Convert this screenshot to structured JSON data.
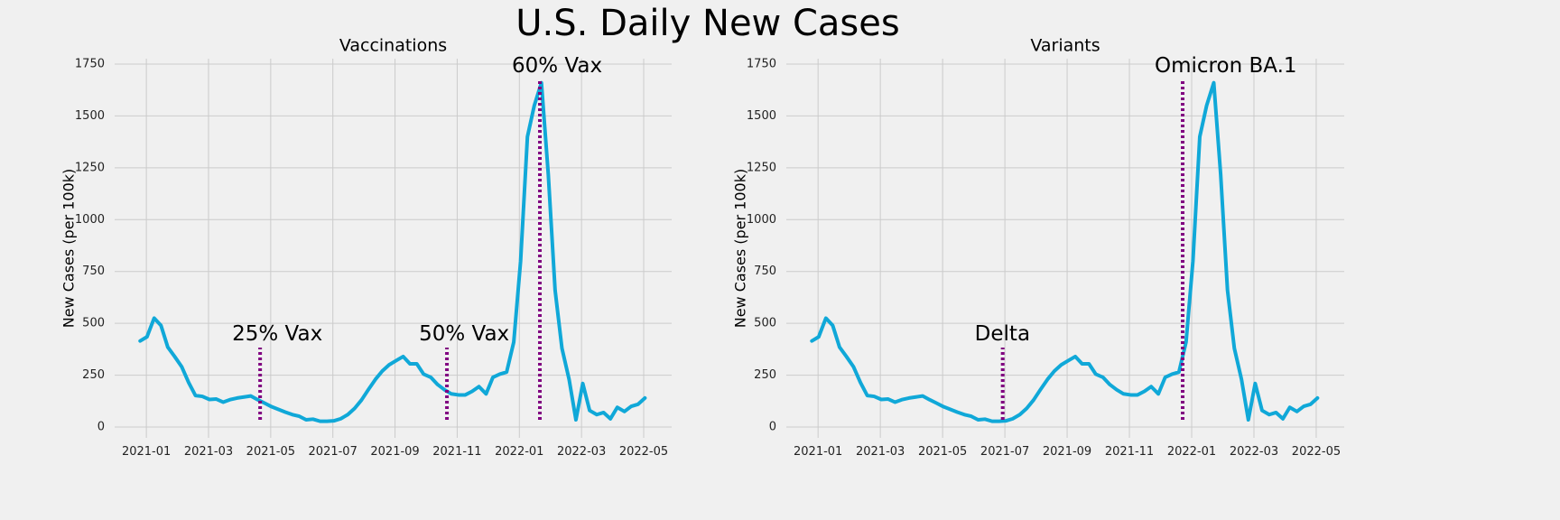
{
  "title": "U.S. Daily New Cases",
  "chart_data": [
    {
      "type": "line",
      "title": "Vaccinations",
      "y_label": "New Cases (per 100k)",
      "x": [
        -0.2,
        0.02,
        0.25,
        0.47,
        0.69,
        0.91,
        1.14,
        1.36,
        1.58,
        1.8,
        2.03,
        2.25,
        2.47,
        2.69,
        2.92,
        3.14,
        3.36,
        3.58,
        3.81,
        4.03,
        4.25,
        4.47,
        4.7,
        4.92,
        5.14,
        5.36,
        5.59,
        5.81,
        6.03,
        6.25,
        6.48,
        6.7,
        6.92,
        7.14,
        7.37,
        7.59,
        7.81,
        8.03,
        8.26,
        8.48,
        8.7,
        8.92,
        9.15,
        9.37,
        9.59,
        9.81,
        10.04,
        10.26,
        10.48,
        10.7,
        10.93,
        11.15,
        11.37,
        11.59,
        11.82,
        12.04,
        12.26,
        12.48,
        12.71,
        12.93,
        13.15,
        13.37,
        13.6,
        13.82,
        14.04,
        14.26,
        14.49,
        14.71,
        14.93,
        15.15,
        15.38,
        15.6,
        15.82,
        16.04
      ],
      "values": [
        415,
        435,
        525,
        490,
        385,
        340,
        290,
        215,
        152,
        148,
        133,
        135,
        120,
        132,
        140,
        145,
        150,
        132,
        115,
        98,
        85,
        72,
        60,
        52,
        35,
        38,
        28,
        28,
        30,
        40,
        60,
        90,
        130,
        180,
        230,
        270,
        300,
        320,
        340,
        305,
        305,
        255,
        240,
        205,
        180,
        160,
        155,
        155,
        172,
        195,
        160,
        240,
        255,
        265,
        410,
        800,
        1400,
        1550,
        1660,
        1220,
        660,
        380,
        230,
        35,
        210,
        80,
        60,
        70,
        40,
        95,
        75,
        100,
        110,
        140
      ],
      "color": "#10a8d8",
      "xlim": [
        -1.02,
        16.9
      ],
      "ylim": [
        -52,
        1776
      ],
      "xticks": [
        {
          "value": 0,
          "label": "2021-01"
        },
        {
          "value": 2,
          "label": "2021-03"
        },
        {
          "value": 4,
          "label": "2021-05"
        },
        {
          "value": 6,
          "label": "2021-07"
        },
        {
          "value": 8,
          "label": "2021-09"
        },
        {
          "value": 10,
          "label": "2021-11"
        },
        {
          "value": 12,
          "label": "2022-01"
        },
        {
          "value": 14,
          "label": "2022-03"
        },
        {
          "value": 16,
          "label": "2022-05"
        }
      ],
      "yticks": [
        0,
        250,
        500,
        750,
        1000,
        1250,
        1500,
        1750
      ],
      "grid": true,
      "annotation_color": "#800080",
      "annotations": [
        {
          "label": "25% Vax",
          "x": 3.66,
          "ymin": 35,
          "ymax": 383
        },
        {
          "label": "50% Vax",
          "x": 9.67,
          "ymin": 35,
          "ymax": 383
        },
        {
          "label": "60% Vax",
          "x": 12.66,
          "ymin": 35,
          "ymax": 1676
        }
      ]
    },
    {
      "type": "line",
      "title": "Variants",
      "y_label": "New Cases (per 100k)",
      "x": [
        -0.2,
        0.02,
        0.25,
        0.47,
        0.69,
        0.91,
        1.14,
        1.36,
        1.58,
        1.8,
        2.03,
        2.25,
        2.47,
        2.69,
        2.92,
        3.14,
        3.36,
        3.58,
        3.81,
        4.03,
        4.25,
        4.47,
        4.7,
        4.92,
        5.14,
        5.36,
        5.59,
        5.81,
        6.03,
        6.25,
        6.48,
        6.7,
        6.92,
        7.14,
        7.37,
        7.59,
        7.81,
        8.03,
        8.26,
        8.48,
        8.7,
        8.92,
        9.15,
        9.37,
        9.59,
        9.81,
        10.04,
        10.26,
        10.48,
        10.7,
        10.93,
        11.15,
        11.37,
        11.59,
        11.82,
        12.04,
        12.26,
        12.48,
        12.71,
        12.93,
        13.15,
        13.37,
        13.6,
        13.82,
        14.04,
        14.26,
        14.49,
        14.71,
        14.93,
        15.15,
        15.38,
        15.6,
        15.82,
        16.04
      ],
      "values": [
        415,
        435,
        525,
        490,
        385,
        340,
        290,
        215,
        152,
        148,
        133,
        135,
        120,
        132,
        140,
        145,
        150,
        132,
        115,
        98,
        85,
        72,
        60,
        52,
        35,
        38,
        28,
        28,
        30,
        40,
        60,
        90,
        130,
        180,
        230,
        270,
        300,
        320,
        340,
        305,
        305,
        255,
        240,
        205,
        180,
        160,
        155,
        155,
        172,
        195,
        160,
        240,
        255,
        265,
        410,
        800,
        1400,
        1550,
        1660,
        1220,
        660,
        380,
        230,
        35,
        210,
        80,
        60,
        70,
        40,
        95,
        75,
        100,
        110,
        140
      ],
      "color": "#10a8d8",
      "xlim": [
        -1.02,
        16.9
      ],
      "ylim": [
        -52,
        1776
      ],
      "xticks": [
        {
          "value": 0,
          "label": "2021-01"
        },
        {
          "value": 2,
          "label": "2021-03"
        },
        {
          "value": 4,
          "label": "2021-05"
        },
        {
          "value": 6,
          "label": "2021-07"
        },
        {
          "value": 8,
          "label": "2021-09"
        },
        {
          "value": 10,
          "label": "2021-11"
        },
        {
          "value": 12,
          "label": "2022-01"
        },
        {
          "value": 14,
          "label": "2022-03"
        },
        {
          "value": 16,
          "label": "2022-05"
        }
      ],
      "yticks": [
        0,
        250,
        500,
        750,
        1000,
        1250,
        1500,
        1750
      ],
      "grid": true,
      "annotation_color": "#800080",
      "annotations": [
        {
          "label": "Delta",
          "x": 5.93,
          "ymin": 35,
          "ymax": 383
        },
        {
          "label": "Omicron BA.1",
          "x": 11.71,
          "ymin": 35,
          "ymax": 1676
        }
      ]
    }
  ]
}
